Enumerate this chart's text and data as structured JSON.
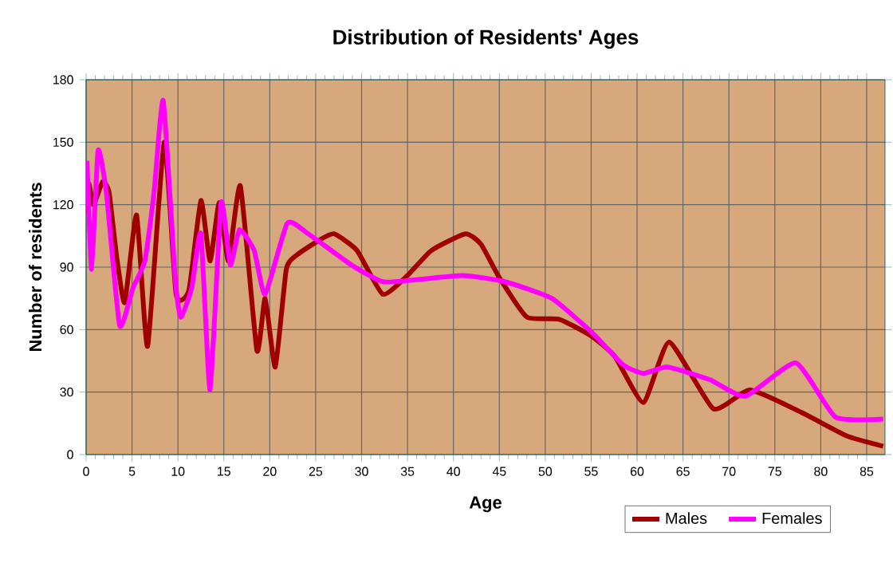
{
  "chart_data": {
    "type": "line",
    "title": "Distribution of Residents' Ages",
    "xlabel": "Age",
    "ylabel": "Number of residents",
    "xlim": [
      0,
      87
    ],
    "xticks": [
      0,
      5,
      10,
      15,
      20,
      25,
      30,
      35,
      40,
      45,
      50,
      55,
      60,
      65,
      70,
      75,
      80,
      85
    ],
    "ylim": [
      0,
      180
    ],
    "yticks": [
      0,
      30,
      60,
      90,
      120,
      150,
      180
    ],
    "grid": true,
    "legend": "bottom right",
    "line_style": "solid",
    "marker": "none",
    "series": [
      {
        "name": "Males",
        "color": "#a00000",
        "x": [
          0,
          0.3,
          0.8,
          1.8,
          2.5,
          3.3,
          4.2,
          5.5,
          6.7,
          8.5,
          9.8,
          11.2,
          12.5,
          13.5,
          14.5,
          15.5,
          16.8,
          18.6,
          19.5,
          20.6,
          21.8,
          23,
          25.4,
          27,
          29.5,
          32.3,
          35,
          37.6,
          41.3,
          43,
          45,
          48,
          51.5,
          55,
          57.6,
          60.7,
          63.5,
          68.3,
          72.3,
          78,
          82.8,
          86.8
        ],
        "values": [
          116,
          130,
          120,
          131,
          126,
          96,
          73,
          115,
          52,
          150,
          77,
          79,
          122,
          93,
          121,
          93,
          129,
          50,
          75,
          42,
          89,
          96,
          103,
          106,
          98,
          77,
          86,
          98,
          106,
          101,
          85,
          66,
          65,
          57,
          47,
          25,
          54,
          22,
          31,
          20,
          9,
          4
        ]
      },
      {
        "name": "Females",
        "color": "#ff00ff",
        "x": [
          0.1,
          0.6,
          1.3,
          2.2,
          3.65,
          5.1,
          6.4,
          7.4,
          8.4,
          9.7,
          10.3,
          11.5,
          12.5,
          13.5,
          14.7,
          15.7,
          16.7,
          18.3,
          19.5,
          21.9,
          24.2,
          28.9,
          32.3,
          36,
          41,
          45.6,
          50.7,
          55,
          58.5,
          60.7,
          63.3,
          67.9,
          71.8,
          77.3,
          81.6,
          86.8
        ],
        "values": [
          141,
          89,
          146,
          126,
          62,
          80,
          93,
          126,
          170,
          85,
          66,
          80,
          106,
          31,
          121,
          91,
          108,
          98,
          77,
          111,
          106,
          91,
          83,
          84,
          86,
          83,
          75,
          59,
          43,
          39,
          42,
          36,
          28,
          44,
          18,
          17
        ]
      }
    ]
  }
}
